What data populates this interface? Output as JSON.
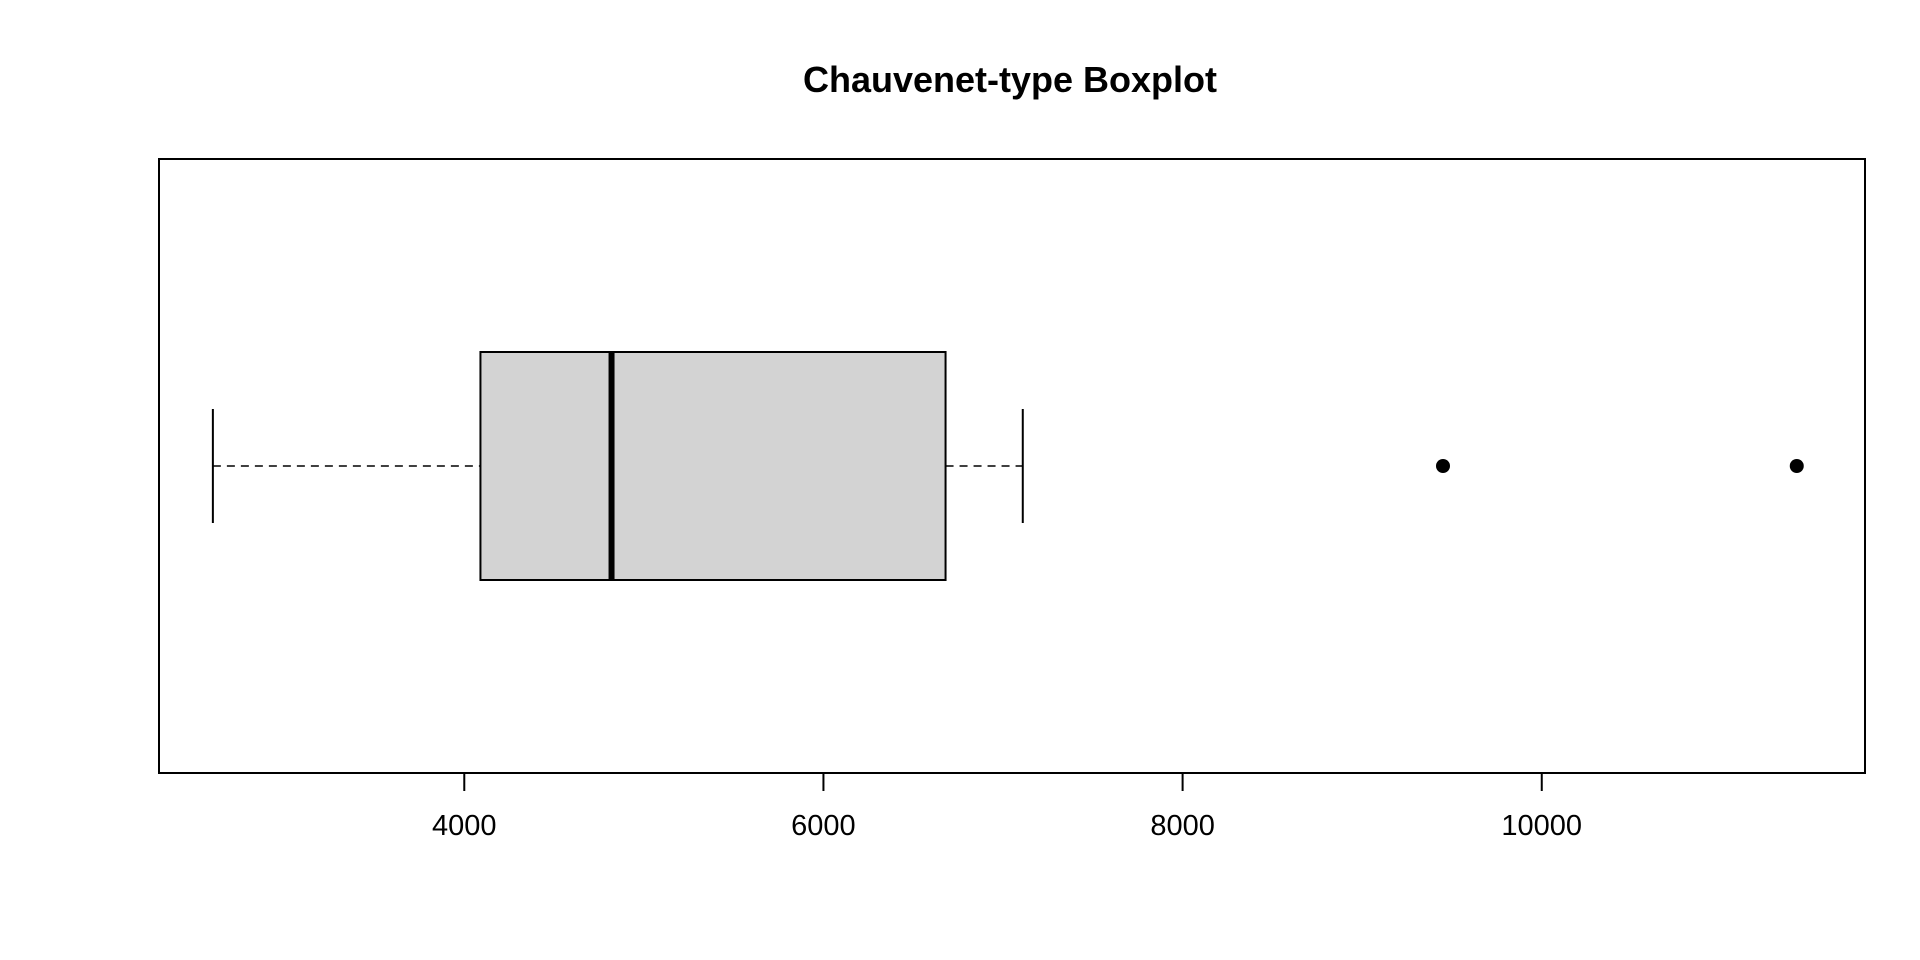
{
  "chart_data": {
    "type": "boxplot",
    "orientation": "horizontal",
    "title": "Chauvenet-type Boxplot",
    "xlabel": "",
    "ylabel": "",
    "xlim": [
      2300,
      11800
    ],
    "ticks": [
      4000,
      6000,
      8000,
      10000
    ],
    "tick_labels": [
      "4000",
      "6000",
      "8000",
      "10000"
    ],
    "grid": false,
    "box": {
      "whisker_low": 2600,
      "q1": 4090,
      "median": 4820,
      "q3": 6680,
      "whisker_high": 7110
    },
    "outliers": [
      9450,
      11420
    ],
    "colors": {
      "box_fill": "#d3d3d3",
      "stroke": "#000000"
    }
  }
}
